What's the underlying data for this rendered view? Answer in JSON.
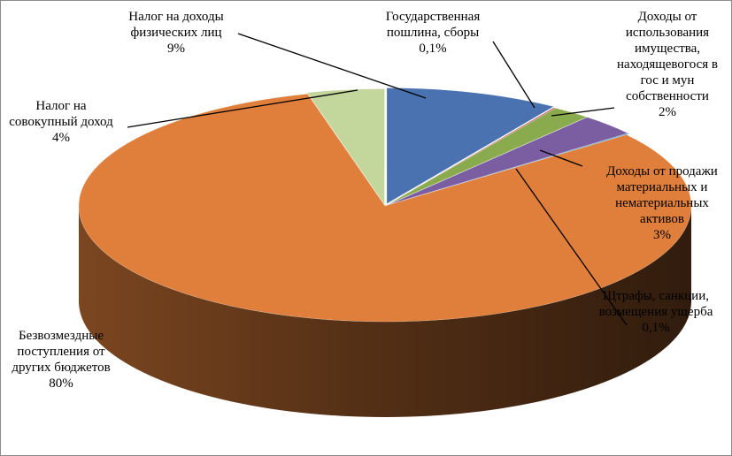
{
  "chart_data": {
    "type": "pie",
    "title": "",
    "slices": [
      {
        "lines": [
          "Налог на доходы",
          "физических лиц",
          "9%"
        ],
        "value": 9,
        "color": "#4a72b0"
      },
      {
        "lines": [
          "Государственная",
          "пошлина, сборы",
          "0,1%"
        ],
        "value": 0.1,
        "color": "#c0504d"
      },
      {
        "lines": [
          "Доходы от",
          "использования",
          "имущества,",
          "находящевогося в",
          "гос и мун",
          "собственности",
          "2%"
        ],
        "value": 2,
        "color": "#8aab4d"
      },
      {
        "lines": [
          "Доходы от продажи",
          "материальных и",
          "нематериальных",
          "активов",
          "3%"
        ],
        "value": 3,
        "color": "#7b5ea2"
      },
      {
        "lines": [
          "Щтрафы, санкции,",
          "возмещения ущерба",
          "0,1%"
        ],
        "value": 0.1,
        "color": "#3c9bc2"
      },
      {
        "lines": [
          "Безвозмездные",
          "поступления от",
          "других бюджетов",
          "80%"
        ],
        "value": 80,
        "color": "#e07f3b"
      },
      {
        "lines": [
          "Налог на",
          "совокупный доход",
          "4%"
        ],
        "value": 4,
        "color": "#c3d69b"
      }
    ],
    "legend": "none",
    "view": "3d-exploded"
  }
}
